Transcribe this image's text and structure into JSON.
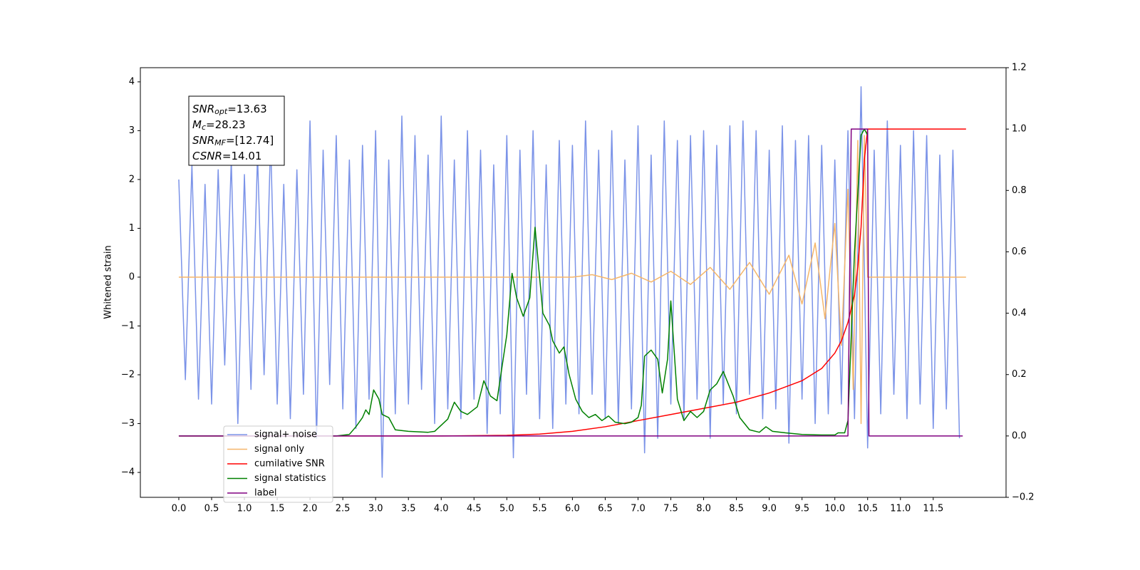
{
  "chart_data": {
    "type": "line",
    "y_label": "Whitened strain",
    "annotation": [
      {
        "text": "SNR",
        "sub": "opt",
        "rest": "=13.63"
      },
      {
        "text": "M",
        "sub": "c",
        "rest": "=28.23"
      },
      {
        "text": "SNR",
        "sub": "MF",
        "rest": "=[12.74]"
      },
      {
        "text": "CSNR",
        "rest": "=14.01"
      }
    ],
    "xlim": [
      -0.586,
      12.61
    ],
    "xticks": [
      {
        "value": 0,
        "label": "0.0"
      },
      0.5,
      {
        "value": 1,
        "label": "1.0"
      },
      1.5,
      {
        "value": 2,
        "label": "2.0"
      },
      2.5,
      {
        "value": 3,
        "label": "3.0"
      },
      3.5,
      {
        "value": 4,
        "label": "4.0"
      },
      4.5,
      {
        "value": 5,
        "label": "5.0"
      },
      5.5,
      {
        "value": 6,
        "label": "6.0"
      },
      6.5,
      {
        "value": 7,
        "label": "7.0"
      },
      7.5,
      {
        "value": 8,
        "label": "8.0"
      },
      8.5,
      {
        "value": 9,
        "label": "9.0"
      },
      9.5,
      {
        "value": 10,
        "label": "10.0"
      },
      10.5,
      {
        "value": 11,
        "label": "11.0"
      },
      11.5
    ],
    "ylim": [
      -4.51,
      4.29
    ],
    "yticks": [
      {
        "value": -4,
        "label": "−4"
      },
      {
        "value": -3,
        "label": "−3"
      },
      {
        "value": -2,
        "label": "−2"
      },
      {
        "value": -1,
        "label": "−1"
      },
      0,
      1,
      2,
      3,
      4
    ],
    "y2lim": [
      -0.2,
      1.2
    ],
    "y2ticks": [
      {
        "value": -0.2,
        "label": "−0.2"
      },
      {
        "value": 0,
        "label": "0.0"
      },
      0.2,
      0.4,
      0.6,
      0.8,
      {
        "value": 1,
        "label": "1.0"
      },
      1.2
    ],
    "legend": "lower left",
    "series": [
      {
        "name": "signal+ noise",
        "color": "#7b93e8",
        "x": [
          0.0,
          0.1,
          0.2,
          0.3,
          0.4,
          0.5,
          0.6,
          0.7,
          0.8,
          0.9,
          1.0,
          1.1,
          1.2,
          1.3,
          1.4,
          1.5,
          1.6,
          1.7,
          1.8,
          1.9,
          2.0,
          2.1,
          2.2,
          2.3,
          2.4,
          2.5,
          2.6,
          2.7,
          2.8,
          2.9,
          3.0,
          3.1,
          3.2,
          3.3,
          3.4,
          3.5,
          3.6,
          3.7,
          3.8,
          3.9,
          4.0,
          4.1,
          4.2,
          4.3,
          4.4,
          4.5,
          4.6,
          4.7,
          4.8,
          4.9,
          5.0,
          5.1,
          5.2,
          5.3,
          5.4,
          5.5,
          5.6,
          5.7,
          5.8,
          5.9,
          6.0,
          6.1,
          6.2,
          6.3,
          6.4,
          6.5,
          6.6,
          6.7,
          6.8,
          6.9,
          7.0,
          7.1,
          7.2,
          7.3,
          7.4,
          7.5,
          7.6,
          7.7,
          7.8,
          7.9,
          8.0,
          8.1,
          8.2,
          8.3,
          8.4,
          8.5,
          8.6,
          8.7,
          8.8,
          8.9,
          9.0,
          9.1,
          9.2,
          9.3,
          9.4,
          9.5,
          9.6,
          9.7,
          9.8,
          9.9,
          10.0,
          10.1,
          10.2,
          10.3,
          10.4,
          10.5,
          10.6,
          10.7,
          10.8,
          10.9,
          11.0,
          11.1,
          11.2,
          11.3,
          11.4,
          11.5,
          11.6,
          11.7,
          11.8,
          11.9
        ],
        "values": [
          2.0,
          -2.1,
          2.3,
          -2.5,
          1.9,
          -2.6,
          2.2,
          -1.8,
          2.4,
          -3.0,
          2.1,
          -2.3,
          2.5,
          -2.0,
          2.8,
          -2.6,
          1.9,
          -2.9,
          2.2,
          -2.4,
          3.2,
          -3.3,
          2.6,
          -2.2,
          2.9,
          -2.7,
          2.4,
          -3.1,
          2.7,
          -2.5,
          3.0,
          -4.1,
          2.4,
          -2.8,
          3.3,
          -2.6,
          2.9,
          -2.3,
          2.5,
          -3.0,
          3.3,
          -2.7,
          2.4,
          -2.9,
          3.0,
          -2.5,
          2.6,
          -3.2,
          2.3,
          -2.8,
          2.9,
          -3.7,
          2.6,
          -2.4,
          3.0,
          -2.9,
          2.3,
          -3.1,
          2.8,
          -2.6,
          2.7,
          -2.8,
          3.2,
          -2.4,
          2.6,
          -2.9,
          3.0,
          -3.0,
          2.4,
          -2.7,
          3.1,
          -3.6,
          2.5,
          -3.3,
          3.2,
          -2.6,
          2.8,
          -2.9,
          2.9,
          -2.5,
          3.0,
          -3.3,
          2.7,
          -2.6,
          3.1,
          -2.8,
          3.2,
          -2.4,
          3.0,
          -2.9,
          2.6,
          -2.7,
          3.1,
          -3.4,
          2.8,
          -2.5,
          2.9,
          -3.0,
          2.7,
          -2.8,
          2.4,
          -2.6,
          3.0,
          -2.9,
          3.9,
          -3.5,
          2.6,
          -2.8,
          3.2,
          -2.4,
          2.7,
          -2.9,
          3.0,
          -2.6,
          2.9,
          -3.1,
          2.5,
          -2.7,
          2.6,
          -3.3
        ]
      },
      {
        "name": "signal only",
        "color": "#f5b66a",
        "x": [
          0,
          6.0,
          6.3,
          6.6,
          6.9,
          7.2,
          7.5,
          7.8,
          8.1,
          8.4,
          8.7,
          9.0,
          9.3,
          9.5,
          9.7,
          9.85,
          10.0,
          10.1,
          10.2,
          10.28,
          10.35,
          10.4,
          10.45,
          10.5,
          12.0
        ],
        "values": [
          0,
          0,
          0.05,
          -0.05,
          0.08,
          -0.1,
          0.12,
          -0.15,
          0.2,
          -0.25,
          0.3,
          -0.35,
          0.45,
          -0.55,
          0.7,
          -0.85,
          1.1,
          -1.4,
          1.8,
          -2.3,
          2.8,
          -3.0,
          2.9,
          0,
          0
        ]
      },
      {
        "name": "cumilative SNR",
        "color": "#ff0000",
        "axis": "y2",
        "x": [
          0,
          4,
          5,
          5.5,
          6,
          6.5,
          7,
          7.5,
          8,
          8.5,
          9,
          9.5,
          9.8,
          10.0,
          10.1,
          10.2,
          10.3,
          10.35,
          10.4,
          10.45,
          10.5,
          12.0
        ],
        "values": [
          0,
          0,
          0.002,
          0.006,
          0.015,
          0.03,
          0.05,
          0.07,
          0.09,
          0.11,
          0.14,
          0.18,
          0.22,
          0.27,
          0.31,
          0.37,
          0.46,
          0.55,
          0.68,
          0.9,
          1.0,
          1.0
        ]
      },
      {
        "name": "signal statistics",
        "color": "#008000",
        "axis": "y2",
        "x": [
          0,
          2.4,
          2.6,
          2.7,
          2.8,
          2.85,
          2.9,
          2.97,
          3.05,
          3.1,
          3.2,
          3.3,
          3.5,
          3.8,
          3.9,
          4.1,
          4.2,
          4.3,
          4.4,
          4.55,
          4.65,
          4.75,
          4.85,
          5.0,
          5.08,
          5.15,
          5.25,
          5.35,
          5.43,
          5.55,
          5.65,
          5.7,
          5.8,
          5.87,
          5.95,
          6.05,
          6.15,
          6.25,
          6.35,
          6.45,
          6.55,
          6.65,
          6.8,
          6.9,
          7.0,
          7.05,
          7.1,
          7.2,
          7.3,
          7.37,
          7.45,
          7.5,
          7.55,
          7.6,
          7.7,
          7.8,
          7.9,
          8.0,
          8.1,
          8.2,
          8.3,
          8.45,
          8.55,
          8.7,
          8.85,
          8.95,
          9.05,
          9.25,
          9.5,
          9.8,
          10.0,
          10.05,
          10.15,
          10.2,
          10.3,
          10.4,
          10.45,
          10.5
        ],
        "values": [
          0,
          0,
          0.005,
          0.03,
          0.06,
          0.085,
          0.07,
          0.15,
          0.12,
          0.07,
          0.06,
          0.02,
          0.015,
          0.012,
          0.015,
          0.055,
          0.11,
          0.08,
          0.07,
          0.095,
          0.18,
          0.13,
          0.115,
          0.33,
          0.53,
          0.45,
          0.39,
          0.45,
          0.68,
          0.4,
          0.36,
          0.31,
          0.27,
          0.29,
          0.2,
          0.12,
          0.08,
          0.06,
          0.07,
          0.05,
          0.065,
          0.045,
          0.04,
          0.045,
          0.06,
          0.1,
          0.26,
          0.28,
          0.25,
          0.14,
          0.25,
          0.44,
          0.28,
          0.12,
          0.05,
          0.08,
          0.06,
          0.08,
          0.15,
          0.17,
          0.21,
          0.13,
          0.06,
          0.02,
          0.012,
          0.03,
          0.015,
          0.01,
          0.005,
          0.003,
          0.003,
          0.01,
          0.01,
          0.05,
          0.6,
          0.98,
          1.0,
          0.98
        ]
      },
      {
        "name": "label",
        "color": "#800080",
        "axis": "y2",
        "x": [
          0,
          10.2,
          10.25,
          10.5,
          10.52,
          11.95
        ],
        "values": [
          0,
          0,
          1,
          1,
          0,
          0
        ]
      }
    ]
  }
}
